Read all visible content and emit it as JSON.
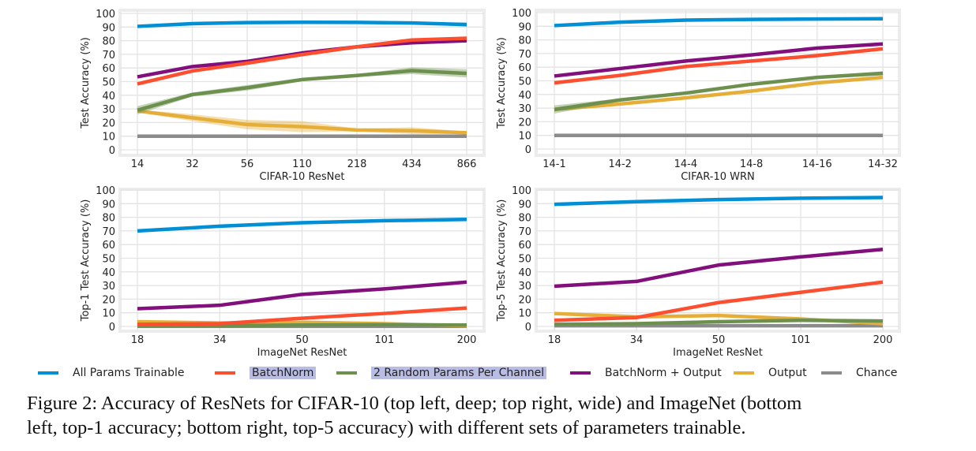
{
  "series_meta": [
    {
      "key": "all",
      "name": "All Params Trainable",
      "color": "#008fd5"
    },
    {
      "key": "bn",
      "name": "BatchNorm",
      "color": "#fc4f30"
    },
    {
      "key": "rand",
      "name": "2 Random Params Per Channel",
      "color": "#6d904f"
    },
    {
      "key": "bnout",
      "name": "BatchNorm + Output",
      "color": "#810f7c"
    },
    {
      "key": "out",
      "name": "Output",
      "color": "#e5ae38"
    },
    {
      "key": "chance",
      "name": "Chance",
      "color": "#8b8b8b"
    }
  ],
  "legend": {
    "items": [
      {
        "label": "All Params Trainable",
        "color": "#008fd5",
        "highlighted": false
      },
      {
        "label": "BatchNorm",
        "color": "#fc4f30",
        "highlighted": true
      },
      {
        "label": "2 Random Params Per Channel",
        "color": "#6d904f",
        "highlighted": true
      },
      {
        "label": "BatchNorm + Output",
        "color": "#810f7c",
        "highlighted": false
      },
      {
        "label": "Output",
        "color": "#e5ae38",
        "highlighted": false
      },
      {
        "label": "Chance",
        "color": "#8b8b8b",
        "highlighted": false
      }
    ],
    "placement": "bottom"
  },
  "caption": {
    "line1": "Figure 2: Accuracy of ResNets for CIFAR-10 (top left, deep; top right, wide) and ImageNet (bottom",
    "line2": "left, top-1 accuracy; bottom right, top-5 accuracy) with different sets of parameters trainable."
  },
  "chart_data": [
    {
      "type": "line",
      "position": "top-left",
      "title": "",
      "xlabel": "CIFAR-10 ResNet",
      "ylabel": "Test Accuracy (%)",
      "categories": [
        "14",
        "32",
        "56",
        "110",
        "218",
        "434",
        "866"
      ],
      "ylim": [
        0,
        100
      ],
      "yticks": [
        0,
        10,
        20,
        30,
        40,
        50,
        60,
        70,
        80,
        90,
        100
      ],
      "grid": true,
      "series": [
        {
          "name": "All Params Trainable",
          "values": [
            90.5,
            92.5,
            93.3,
            93.5,
            93.4,
            93.0,
            91.8
          ],
          "band": [
            0.5,
            0.5,
            0.5,
            0.8,
            0.6,
            0.6,
            1.5
          ]
        },
        {
          "name": "BatchNorm",
          "values": [
            48.3,
            57.8,
            63.5,
            69.8,
            75.5,
            80.5,
            81.8
          ],
          "band": [
            0.8,
            0.8,
            0.8,
            0.8,
            0.8,
            1.0,
            1.0
          ]
        },
        {
          "name": "2 Random Params Per Channel",
          "values": [
            29.0,
            40.5,
            45.5,
            51.5,
            54.5,
            58.0,
            56.0
          ],
          "band": [
            3.0,
            1.5,
            2.0,
            1.2,
            1.0,
            2.5,
            3.0
          ]
        },
        {
          "name": "BatchNorm + Output",
          "values": [
            53.5,
            61.0,
            64.8,
            71.0,
            75.5,
            78.5,
            80.0
          ],
          "band": [
            0.8,
            0.8,
            0.8,
            0.8,
            0.8,
            1.0,
            1.0
          ]
        },
        {
          "name": "Output",
          "values": [
            28.5,
            23.5,
            18.5,
            17.0,
            14.5,
            14.0,
            12.5
          ],
          "band": [
            1.0,
            2.5,
            3.5,
            4.0,
            1.0,
            2.5,
            1.0
          ]
        },
        {
          "name": "Chance",
          "values": [
            10,
            10,
            10,
            10,
            10,
            10,
            10
          ],
          "band": [
            0,
            0,
            0,
            0,
            0,
            0,
            0
          ]
        }
      ]
    },
    {
      "type": "line",
      "position": "top-right",
      "title": "",
      "xlabel": "CIFAR-10 WRN",
      "ylabel": "Test Accuracy (%)",
      "categories": [
        "14-1",
        "14-2",
        "14-4",
        "14-8",
        "14-16",
        "14-32"
      ],
      "ylim": [
        0,
        100
      ],
      "yticks": [
        0,
        10,
        20,
        30,
        40,
        50,
        60,
        70,
        80,
        90,
        100
      ],
      "grid": true,
      "series": [
        {
          "name": "All Params Trainable",
          "values": [
            90.5,
            93.0,
            94.5,
            95.0,
            95.3,
            95.5
          ],
          "band": [
            0.5,
            0.5,
            0.5,
            0.5,
            0.5,
            0.5
          ]
        },
        {
          "name": "BatchNorm",
          "values": [
            48.5,
            54.0,
            60.5,
            64.5,
            68.5,
            73.5
          ],
          "band": [
            0.8,
            0.8,
            0.8,
            0.8,
            0.8,
            0.8
          ]
        },
        {
          "name": "2 Random Params Per Channel",
          "values": [
            29.0,
            36.0,
            41.0,
            47.5,
            52.5,
            55.5
          ],
          "band": [
            3.0,
            1.0,
            1.0,
            1.0,
            1.0,
            1.5
          ]
        },
        {
          "name": "BatchNorm + Output",
          "values": [
            53.5,
            59.0,
            64.5,
            69.0,
            74.0,
            77.0
          ],
          "band": [
            0.8,
            0.8,
            0.8,
            0.8,
            0.8,
            0.8
          ]
        },
        {
          "name": "Output",
          "values": [
            29.0,
            33.0,
            37.5,
            42.5,
            48.5,
            52.5
          ],
          "band": [
            1.0,
            1.0,
            1.0,
            1.0,
            1.0,
            1.0
          ]
        },
        {
          "name": "Chance",
          "values": [
            10,
            10,
            10,
            10,
            10,
            10
          ],
          "band": [
            0,
            0,
            0,
            0,
            0,
            0
          ]
        }
      ]
    },
    {
      "type": "line",
      "position": "bottom-left",
      "title": "",
      "xlabel": "ImageNet ResNet",
      "ylabel": "Top-1 Test Accuracy (%)",
      "categories": [
        "18",
        "34",
        "50",
        "101",
        "200"
      ],
      "ylim": [
        0,
        100
      ],
      "yticks": [
        0,
        10,
        20,
        30,
        40,
        50,
        60,
        70,
        80,
        90,
        100
      ],
      "grid": true,
      "series": [
        {
          "name": "All Params Trainable",
          "values": [
            70.0,
            73.5,
            76.0,
            77.5,
            78.5
          ],
          "band": [
            0,
            0,
            0,
            0,
            0
          ]
        },
        {
          "name": "BatchNorm",
          "values": [
            1.5,
            2.0,
            6.0,
            9.5,
            13.5
          ],
          "band": [
            0,
            0,
            0,
            0,
            0
          ]
        },
        {
          "name": "2 Random Params Per Channel",
          "values": [
            0.3,
            0.5,
            1.0,
            1.2,
            1.0
          ],
          "band": [
            0,
            0,
            0,
            0,
            0
          ]
        },
        {
          "name": "BatchNorm + Output",
          "values": [
            13.0,
            15.5,
            23.5,
            27.5,
            32.5
          ],
          "band": [
            0,
            0,
            0,
            0,
            0
          ]
        },
        {
          "name": "Output",
          "values": [
            3.5,
            2.5,
            3.0,
            2.0,
            0.5
          ],
          "band": [
            0,
            0,
            0,
            0,
            0
          ]
        },
        {
          "name": "Chance",
          "values": [
            0.1,
            0.1,
            0.1,
            0.1,
            0.1
          ],
          "band": [
            0,
            0,
            0,
            0,
            0
          ]
        }
      ]
    },
    {
      "type": "line",
      "position": "bottom-right",
      "title": "",
      "xlabel": "ImageNet ResNet",
      "ylabel": "Top-5 Test Accuracy (%)",
      "categories": [
        "18",
        "34",
        "50",
        "101",
        "200"
      ],
      "ylim": [
        0,
        100
      ],
      "yticks": [
        0,
        10,
        20,
        30,
        40,
        50,
        60,
        70,
        80,
        90,
        100
      ],
      "grid": true,
      "series": [
        {
          "name": "All Params Trainable",
          "values": [
            89.5,
            91.5,
            93.0,
            94.0,
            94.5
          ],
          "band": [
            0,
            0,
            0,
            0,
            0
          ]
        },
        {
          "name": "BatchNorm",
          "values": [
            4.5,
            6.5,
            17.5,
            25.0,
            32.5
          ],
          "band": [
            0,
            0,
            0,
            0,
            0
          ]
        },
        {
          "name": "2 Random Params Per Channel",
          "values": [
            1.5,
            2.0,
            3.5,
            4.5,
            4.0
          ],
          "band": [
            0,
            0,
            0,
            0,
            0
          ]
        },
        {
          "name": "BatchNorm + Output",
          "values": [
            29.5,
            33.0,
            45.0,
            51.0,
            56.5
          ],
          "band": [
            0,
            0,
            0,
            0,
            0
          ]
        },
        {
          "name": "Output",
          "values": [
            9.5,
            7.0,
            8.0,
            5.5,
            2.0
          ],
          "band": [
            0,
            0,
            0,
            0,
            0
          ]
        },
        {
          "name": "Chance",
          "values": [
            0.5,
            0.5,
            0.5,
            0.5,
            0.5
          ],
          "band": [
            0,
            0,
            0,
            0,
            0
          ]
        }
      ]
    }
  ]
}
